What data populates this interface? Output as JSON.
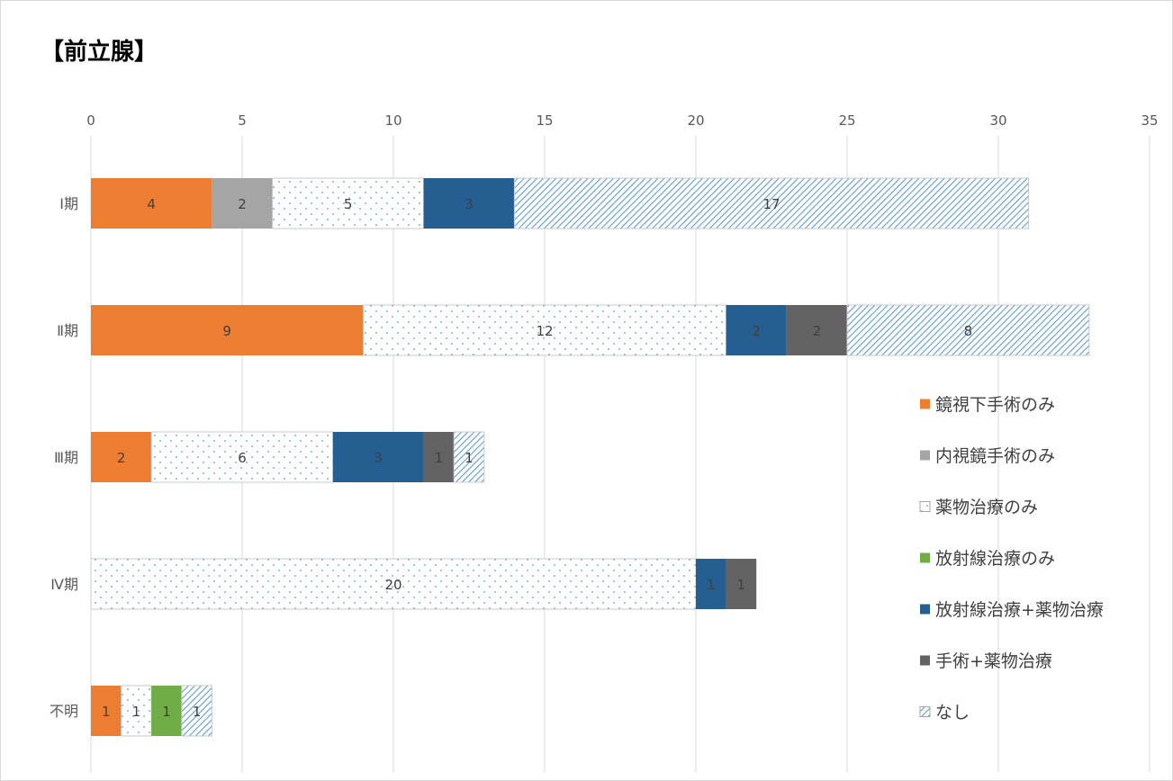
{
  "chart_data": {
    "type": "bar",
    "orientation": "horizontal",
    "stacked": true,
    "title": "【前立腺】",
    "xlabel": "",
    "ylabel": "",
    "xlim": [
      0,
      35
    ],
    "ticks": [
      0,
      5,
      10,
      15,
      20,
      25,
      30,
      35
    ],
    "tick_labels": [
      "0",
      "5",
      "10",
      "15",
      "20",
      "25",
      "30",
      "35"
    ],
    "x_axis_position": "top",
    "grid": "vertical",
    "legend_position": "right",
    "categories": [
      "Ⅰ期",
      "Ⅱ期",
      "Ⅲ期",
      "Ⅳ期",
      "不明"
    ],
    "series": [
      {
        "name": "鏡視下手術のみ",
        "color": "#ed7d31",
        "pattern": "solid",
        "values": [
          4,
          9,
          2,
          0,
          1
        ]
      },
      {
        "name": "内視鏡手術のみ",
        "color": "#a5a5a5",
        "pattern": "solid",
        "values": [
          2,
          0,
          0,
          0,
          0
        ]
      },
      {
        "name": "薬物治療のみ",
        "color": "#5b9bd5",
        "pattern": "dots",
        "values": [
          5,
          12,
          6,
          20,
          1
        ]
      },
      {
        "name": "放射線治療のみ",
        "color": "#70ad47",
        "pattern": "solid",
        "values": [
          0,
          0,
          0,
          0,
          1
        ]
      },
      {
        "name": "放射線治療+薬物治療",
        "color": "#255e91",
        "pattern": "solid",
        "values": [
          3,
          2,
          3,
          1,
          0
        ]
      },
      {
        "name": "手術+薬物治療",
        "color": "#636363",
        "pattern": "solid",
        "values": [
          0,
          2,
          1,
          1,
          0
        ]
      },
      {
        "name": "なし",
        "color": "#5b9bd5",
        "pattern": "hatch",
        "values": [
          17,
          8,
          1,
          0,
          1
        ]
      }
    ]
  }
}
